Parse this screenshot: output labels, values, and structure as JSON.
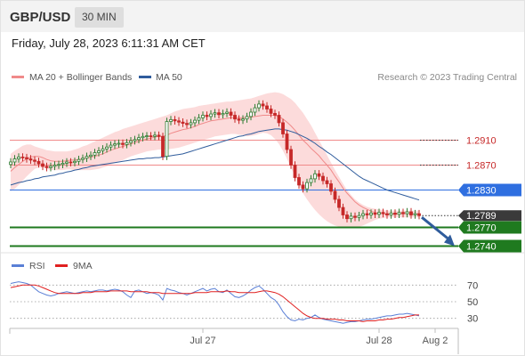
{
  "header": {
    "symbol": "GBP/USD",
    "interval": "30 MIN",
    "datetime": "Friday, July 28, 2023 6:11:31 AM CET"
  },
  "legend": {
    "main": [
      {
        "label": "MA 20 + Bollinger Bands",
        "color": "#f08a8a"
      },
      {
        "label": "MA 50",
        "color": "#2f5c9c"
      }
    ],
    "rsi": [
      {
        "label": "RSI",
        "color": "#5a7fd6"
      },
      {
        "label": "9MA",
        "color": "#e02020"
      }
    ]
  },
  "credit": "Research © 2023 Trading Central",
  "colors": {
    "up": "#2e7d32",
    "down": "#c62828",
    "candle": "#5a5a5a",
    "ma20": "#f08a8a",
    "band_fill": "#fbd5d5",
    "ma50": "#2f5c9c",
    "resistance": "#f08a8a",
    "pivot": "#2f6fe0",
    "support": "#1f7a1f",
    "arrow": "#2f5c9c",
    "rsi": "#5a7fd6",
    "rsi_ma": "#e02020"
  },
  "chart_data": [
    {
      "type": "candlestick",
      "y_range": [
        1.2735,
        1.2995
      ],
      "x_ticks": [
        "Jul 27",
        "Jul 28",
        "Aug 2"
      ],
      "levels": [
        {
          "value": 1.291,
          "label": "1.2910",
          "kind": "resistance"
        },
        {
          "value": 1.287,
          "label": "1.2870",
          "kind": "resistance"
        },
        {
          "value": 1.283,
          "label": "1.2830",
          "kind": "pivot"
        },
        {
          "value": 1.277,
          "label": "1.2770",
          "kind": "support"
        },
        {
          "value": 1.274,
          "label": "1.2740",
          "kind": "support"
        }
      ],
      "last_price": {
        "value": 1.2789,
        "label": "1.2789"
      },
      "arrow": {
        "from": 1.2789,
        "to": 1.275,
        "direction": "down"
      },
      "close": [
        1.2875,
        1.288,
        1.2883,
        1.2882,
        1.288,
        1.2878,
        1.2876,
        1.2872,
        1.2868,
        1.2866,
        1.2868,
        1.287,
        1.2871,
        1.2873,
        1.2875,
        1.2874,
        1.2876,
        1.2879,
        1.2881,
        1.2884,
        1.2886,
        1.289,
        1.2893,
        1.2896,
        1.2899,
        1.2902,
        1.2904,
        1.2905,
        1.2903,
        1.2906,
        1.2909,
        1.2911,
        1.2914,
        1.2916,
        1.2917,
        1.2916,
        1.2918,
        1.2916,
        1.2884,
        1.294,
        1.2943,
        1.2941,
        1.2939,
        1.2937,
        1.2935,
        1.2938,
        1.2942,
        1.2946,
        1.295,
        1.2948,
        1.2952,
        1.2954,
        1.2951,
        1.2953,
        1.2955,
        1.295,
        1.2944,
        1.2942,
        1.2944,
        1.2948,
        1.2955,
        1.2962,
        1.2968,
        1.2965,
        1.296,
        1.2953,
        1.295,
        1.2938,
        1.292,
        1.2895,
        1.287,
        1.285,
        1.2838,
        1.2832,
        1.2842,
        1.2848,
        1.2856,
        1.2852,
        1.2845,
        1.284,
        1.2828,
        1.2815,
        1.2802,
        1.279,
        1.2784,
        1.2788,
        1.2786,
        1.2789,
        1.2792,
        1.279,
        1.2793,
        1.2791,
        1.2794,
        1.2792,
        1.279,
        1.2793,
        1.2791,
        1.2794,
        1.2792,
        1.2795,
        1.279,
        1.2792,
        1.2789
      ],
      "ma20": [
        1.286,
        1.2866,
        1.2871,
        1.2876,
        1.288,
        1.2883,
        1.2884,
        1.2884,
        1.2882,
        1.2879,
        1.2877,
        1.2876,
        1.2876,
        1.2876,
        1.2877,
        1.2878,
        1.2878,
        1.2879,
        1.288,
        1.2881,
        1.2883,
        1.2884,
        1.2886,
        1.2888,
        1.2891,
        1.2894,
        1.2896,
        1.2898,
        1.29,
        1.2902,
        1.2904,
        1.2906,
        1.2908,
        1.291,
        1.2912,
        1.2913,
        1.2915,
        1.2916,
        1.2916,
        1.2918,
        1.2921,
        1.2923,
        1.2925,
        1.2927,
        1.2928,
        1.293,
        1.2932,
        1.2935,
        1.2937,
        1.2939,
        1.2941,
        1.2942,
        1.2943,
        1.2944,
        1.2945,
        1.2946,
        1.2946,
        1.2946,
        1.2946,
        1.2946,
        1.2947,
        1.2948,
        1.2949,
        1.295,
        1.295,
        1.295,
        1.295,
        1.2948,
        1.2944,
        1.2939,
        1.2933,
        1.2926,
        1.2918,
        1.291,
        1.2904,
        1.2897,
        1.2891,
        1.2885,
        1.2877,
        1.287,
        1.2862,
        1.2852,
        1.2843,
        1.2833,
        1.2825,
        1.2818,
        1.2811,
        1.2806,
        1.2802,
        1.2799,
        1.2796,
        1.2794,
        1.2793,
        1.2792,
        1.2791,
        1.2791,
        1.2791,
        1.2792,
        1.2792,
        1.2792,
        1.2792,
        1.2792,
        1.2792
      ],
      "bb_upper": [
        1.2888,
        1.2893,
        1.2897,
        1.2901,
        1.2903,
        1.2903,
        1.29,
        1.2898,
        1.2896,
        1.2894,
        1.2893,
        1.2892,
        1.2892,
        1.2892,
        1.2892,
        1.2893,
        1.2895,
        1.2897,
        1.29,
        1.2902,
        1.2905,
        1.2908,
        1.2911,
        1.2914,
        1.2917,
        1.292,
        1.2923,
        1.2925,
        1.2928,
        1.293,
        1.2932,
        1.2934,
        1.2936,
        1.2938,
        1.294,
        1.2942,
        1.2944,
        1.2946,
        1.2948,
        1.295,
        1.2953,
        1.2956,
        1.2958,
        1.296,
        1.2961,
        1.2962,
        1.2963,
        1.2965,
        1.2966,
        1.2967,
        1.2968,
        1.2969,
        1.297,
        1.2971,
        1.2972,
        1.2972,
        1.2973,
        1.2974,
        1.2975,
        1.2976,
        1.2977,
        1.2979,
        1.2981,
        1.2983,
        1.2985,
        1.2986,
        1.2987,
        1.2986,
        1.2984,
        1.298,
        1.2976,
        1.297,
        1.2962,
        1.2954,
        1.2944,
        1.2934,
        1.2922,
        1.291,
        1.2898,
        1.2886,
        1.2874,
        1.2862,
        1.2851,
        1.284,
        1.283,
        1.2822,
        1.2815,
        1.281,
        1.2806,
        1.2803,
        1.2801,
        1.28,
        1.2799,
        1.2798,
        1.2797,
        1.2797,
        1.2797,
        1.2797,
        1.2797,
        1.2797,
        1.2797,
        1.2797,
        1.2797
      ],
      "bb_lower": [
        1.2828,
        1.2832,
        1.2838,
        1.2845,
        1.2852,
        1.2858,
        1.2864,
        1.2866,
        1.2866,
        1.2864,
        1.2862,
        1.2862,
        1.2862,
        1.2862,
        1.2863,
        1.2863,
        1.2862,
        1.2862,
        1.2862,
        1.2862,
        1.2862,
        1.2863,
        1.2864,
        1.2866,
        1.2868,
        1.2871,
        1.2873,
        1.2876,
        1.2878,
        1.2881,
        1.2884,
        1.2886,
        1.2888,
        1.289,
        1.2892,
        1.2893,
        1.2894,
        1.2895,
        1.2895,
        1.2895,
        1.2896,
        1.2897,
        1.2898,
        1.29,
        1.2902,
        1.2904,
        1.2906,
        1.2908,
        1.291,
        1.2912,
        1.2914,
        1.2916,
        1.2917,
        1.2918,
        1.2919,
        1.292,
        1.292,
        1.2919,
        1.2918,
        1.2916,
        1.2917,
        1.2918,
        1.292,
        1.2922,
        1.2921,
        1.2918,
        1.2912,
        1.2904,
        1.2893,
        1.288,
        1.2866,
        1.2852,
        1.2838,
        1.2825,
        1.2815,
        1.2806,
        1.2798,
        1.2791,
        1.2785,
        1.278,
        1.2776,
        1.2773,
        1.2771,
        1.277,
        1.2769,
        1.2769,
        1.2769,
        1.2771,
        1.2773,
        1.2776,
        1.2779,
        1.2782,
        1.2784,
        1.2785,
        1.2786,
        1.2786,
        1.2786,
        1.2786,
        1.2786,
        1.2786,
        1.2786,
        1.2786,
        1.2786
      ],
      "ma50": [
        1.2838,
        1.284,
        1.2842,
        1.2843,
        1.2845,
        1.2846,
        1.2848,
        1.2849,
        1.2851,
        1.2852,
        1.2853,
        1.2854,
        1.2856,
        1.2857,
        1.2859,
        1.286,
        1.2862,
        1.2863,
        1.2865,
        1.2866,
        1.2868,
        1.2869,
        1.287,
        1.2871,
        1.2872,
        1.2873,
        1.2874,
        1.2875,
        1.2876,
        1.2877,
        1.2878,
        1.2879,
        1.288,
        1.288,
        1.2881,
        1.2881,
        1.2882,
        1.2882,
        1.2883,
        1.2884,
        1.2885,
        1.2886,
        1.2887,
        1.2888,
        1.289,
        1.2892,
        1.2894,
        1.2896,
        1.2898,
        1.29,
        1.2902,
        1.2904,
        1.2906,
        1.2908,
        1.291,
        1.2912,
        1.2914,
        1.2916,
        1.2917,
        1.2919,
        1.292,
        1.2922,
        1.2924,
        1.2925,
        1.2926,
        1.2927,
        1.2928,
        1.2928,
        1.2927,
        1.2926,
        1.2924,
        1.2922,
        1.2919,
        1.2916,
        1.2913,
        1.2909,
        1.2905,
        1.29,
        1.2896,
        1.2891,
        1.2887,
        1.2882,
        1.2877,
        1.2872,
        1.2867,
        1.2862,
        1.2857,
        1.2852,
        1.2848,
        1.2845,
        1.2842,
        1.2839,
        1.2836,
        1.2833,
        1.283,
        1.2828,
        1.2826,
        1.2824,
        1.2822,
        1.282,
        1.2818,
        1.2816,
        1.2814
      ]
    },
    {
      "type": "line",
      "title": "RSI",
      "y_range": [
        20,
        80
      ],
      "gridlines": [
        70,
        50,
        30
      ],
      "y_ticks": [
        "70",
        "50",
        "30"
      ],
      "x_ticks": [
        "Jul 27",
        "Jul 28",
        "Aug 2"
      ],
      "series": [
        {
          "name": "RSI",
          "values": [
            72,
            73,
            74,
            73,
            72,
            70,
            66,
            62,
            60,
            58,
            57,
            58,
            60,
            61,
            62,
            61,
            60,
            61,
            62,
            63,
            62,
            63,
            64,
            64,
            63,
            64,
            65,
            64,
            62,
            58,
            55,
            63,
            64,
            62,
            60,
            61,
            60,
            58,
            52,
            66,
            64,
            63,
            61,
            60,
            58,
            60,
            62,
            64,
            66,
            63,
            65,
            66,
            62,
            61,
            64,
            60,
            56,
            55,
            57,
            60,
            64,
            67,
            69,
            65,
            60,
            55,
            52,
            46,
            38,
            32,
            28,
            27,
            29,
            28,
            30,
            31,
            34,
            31,
            29,
            28,
            27,
            26,
            25,
            24,
            25,
            26,
            26,
            27,
            28,
            29,
            29,
            30,
            31,
            32,
            33,
            33,
            34,
            35,
            35,
            36,
            35,
            34,
            33
          ]
        },
        {
          "name": "9MA",
          "values": [
            67,
            68,
            69,
            70,
            70,
            70,
            70,
            69,
            67,
            65,
            63,
            61,
            60,
            60,
            60,
            60,
            60,
            60,
            61,
            61,
            61,
            62,
            62,
            62,
            62,
            63,
            63,
            63,
            63,
            63,
            62,
            62,
            62,
            62,
            62,
            61,
            61,
            61,
            60,
            60,
            60,
            60,
            60,
            60,
            60,
            60,
            61,
            61,
            61,
            61,
            62,
            62,
            62,
            62,
            63,
            62,
            62,
            61,
            61,
            61,
            61,
            61,
            62,
            63,
            63,
            62,
            61,
            59,
            56,
            52,
            48,
            44,
            40,
            36,
            33,
            31,
            30,
            30,
            30,
            29,
            29,
            29,
            28,
            28,
            27,
            27,
            27,
            27,
            26,
            27,
            27,
            27,
            28,
            28,
            29,
            29,
            30,
            31,
            31,
            32,
            33,
            34,
            34
          ]
        }
      ]
    }
  ]
}
